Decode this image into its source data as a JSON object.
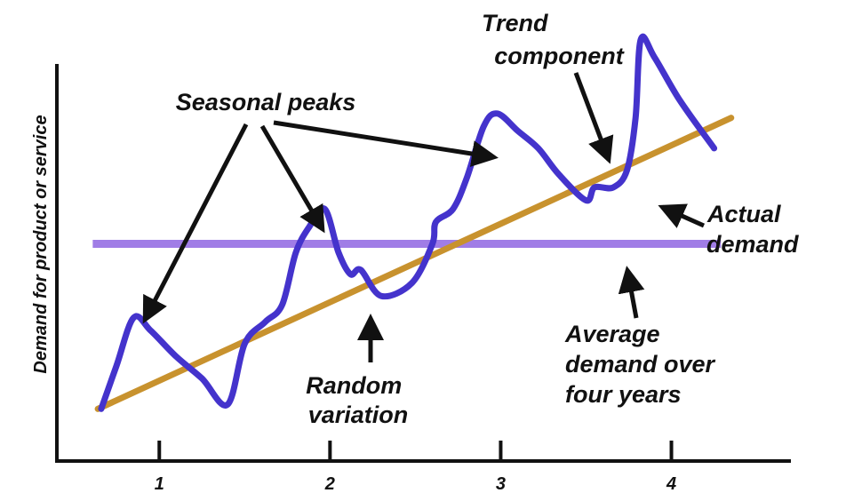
{
  "chart_data": {
    "type": "line",
    "title": "",
    "xlabel": "",
    "ylabel": "Demand for product or service",
    "xlim": [
      0.4,
      4.7
    ],
    "ylim": [
      0,
      1
    ],
    "x_ticks": [
      "1",
      "2",
      "3",
      "4"
    ],
    "x_tick_values": [
      1,
      2,
      3,
      4
    ],
    "grid": false,
    "series": [
      {
        "color": "#4433cc",
        "x": [
          0.66,
          0.75,
          0.85,
          0.95,
          1.1,
          1.25,
          1.4,
          1.5,
          1.62,
          1.72,
          1.8,
          1.88,
          1.97,
          2.05,
          2.12,
          2.18,
          2.3,
          2.48,
          2.6,
          2.62,
          2.72,
          2.8,
          2.9,
          2.98,
          3.1,
          3.22,
          3.34,
          3.5,
          3.55,
          3.66,
          3.74,
          3.79,
          3.82,
          3.9,
          4.05,
          4.25
        ],
        "y": [
          0.12,
          0.22,
          0.33,
          0.3,
          0.24,
          0.19,
          0.13,
          0.27,
          0.32,
          0.36,
          0.48,
          0.54,
          0.58,
          0.48,
          0.43,
          0.44,
          0.38,
          0.41,
          0.5,
          0.55,
          0.58,
          0.65,
          0.77,
          0.8,
          0.76,
          0.72,
          0.66,
          0.6,
          0.63,
          0.63,
          0.67,
          0.79,
          0.97,
          0.93,
          0.83,
          0.72
        ]
      },
      {
        "color": "#c8922e",
        "x": [
          0.64,
          4.35
        ],
        "y": [
          0.12,
          0.79
        ]
      },
      {
        "color": "#a07de6",
        "x": [
          0.61,
          4.29
        ],
        "y": [
          0.5,
          0.5
        ]
      }
    ],
    "annotations": [
      {
        "lines": [
          "Seasonal peaks"
        ]
      },
      {
        "lines": [
          "Trend",
          "component"
        ]
      },
      {
        "lines": [
          "Actual",
          "demand"
        ]
      },
      {
        "lines": [
          "Random",
          "variation"
        ]
      },
      {
        "lines": [
          "Average",
          "demand over",
          "four years"
        ]
      }
    ]
  }
}
